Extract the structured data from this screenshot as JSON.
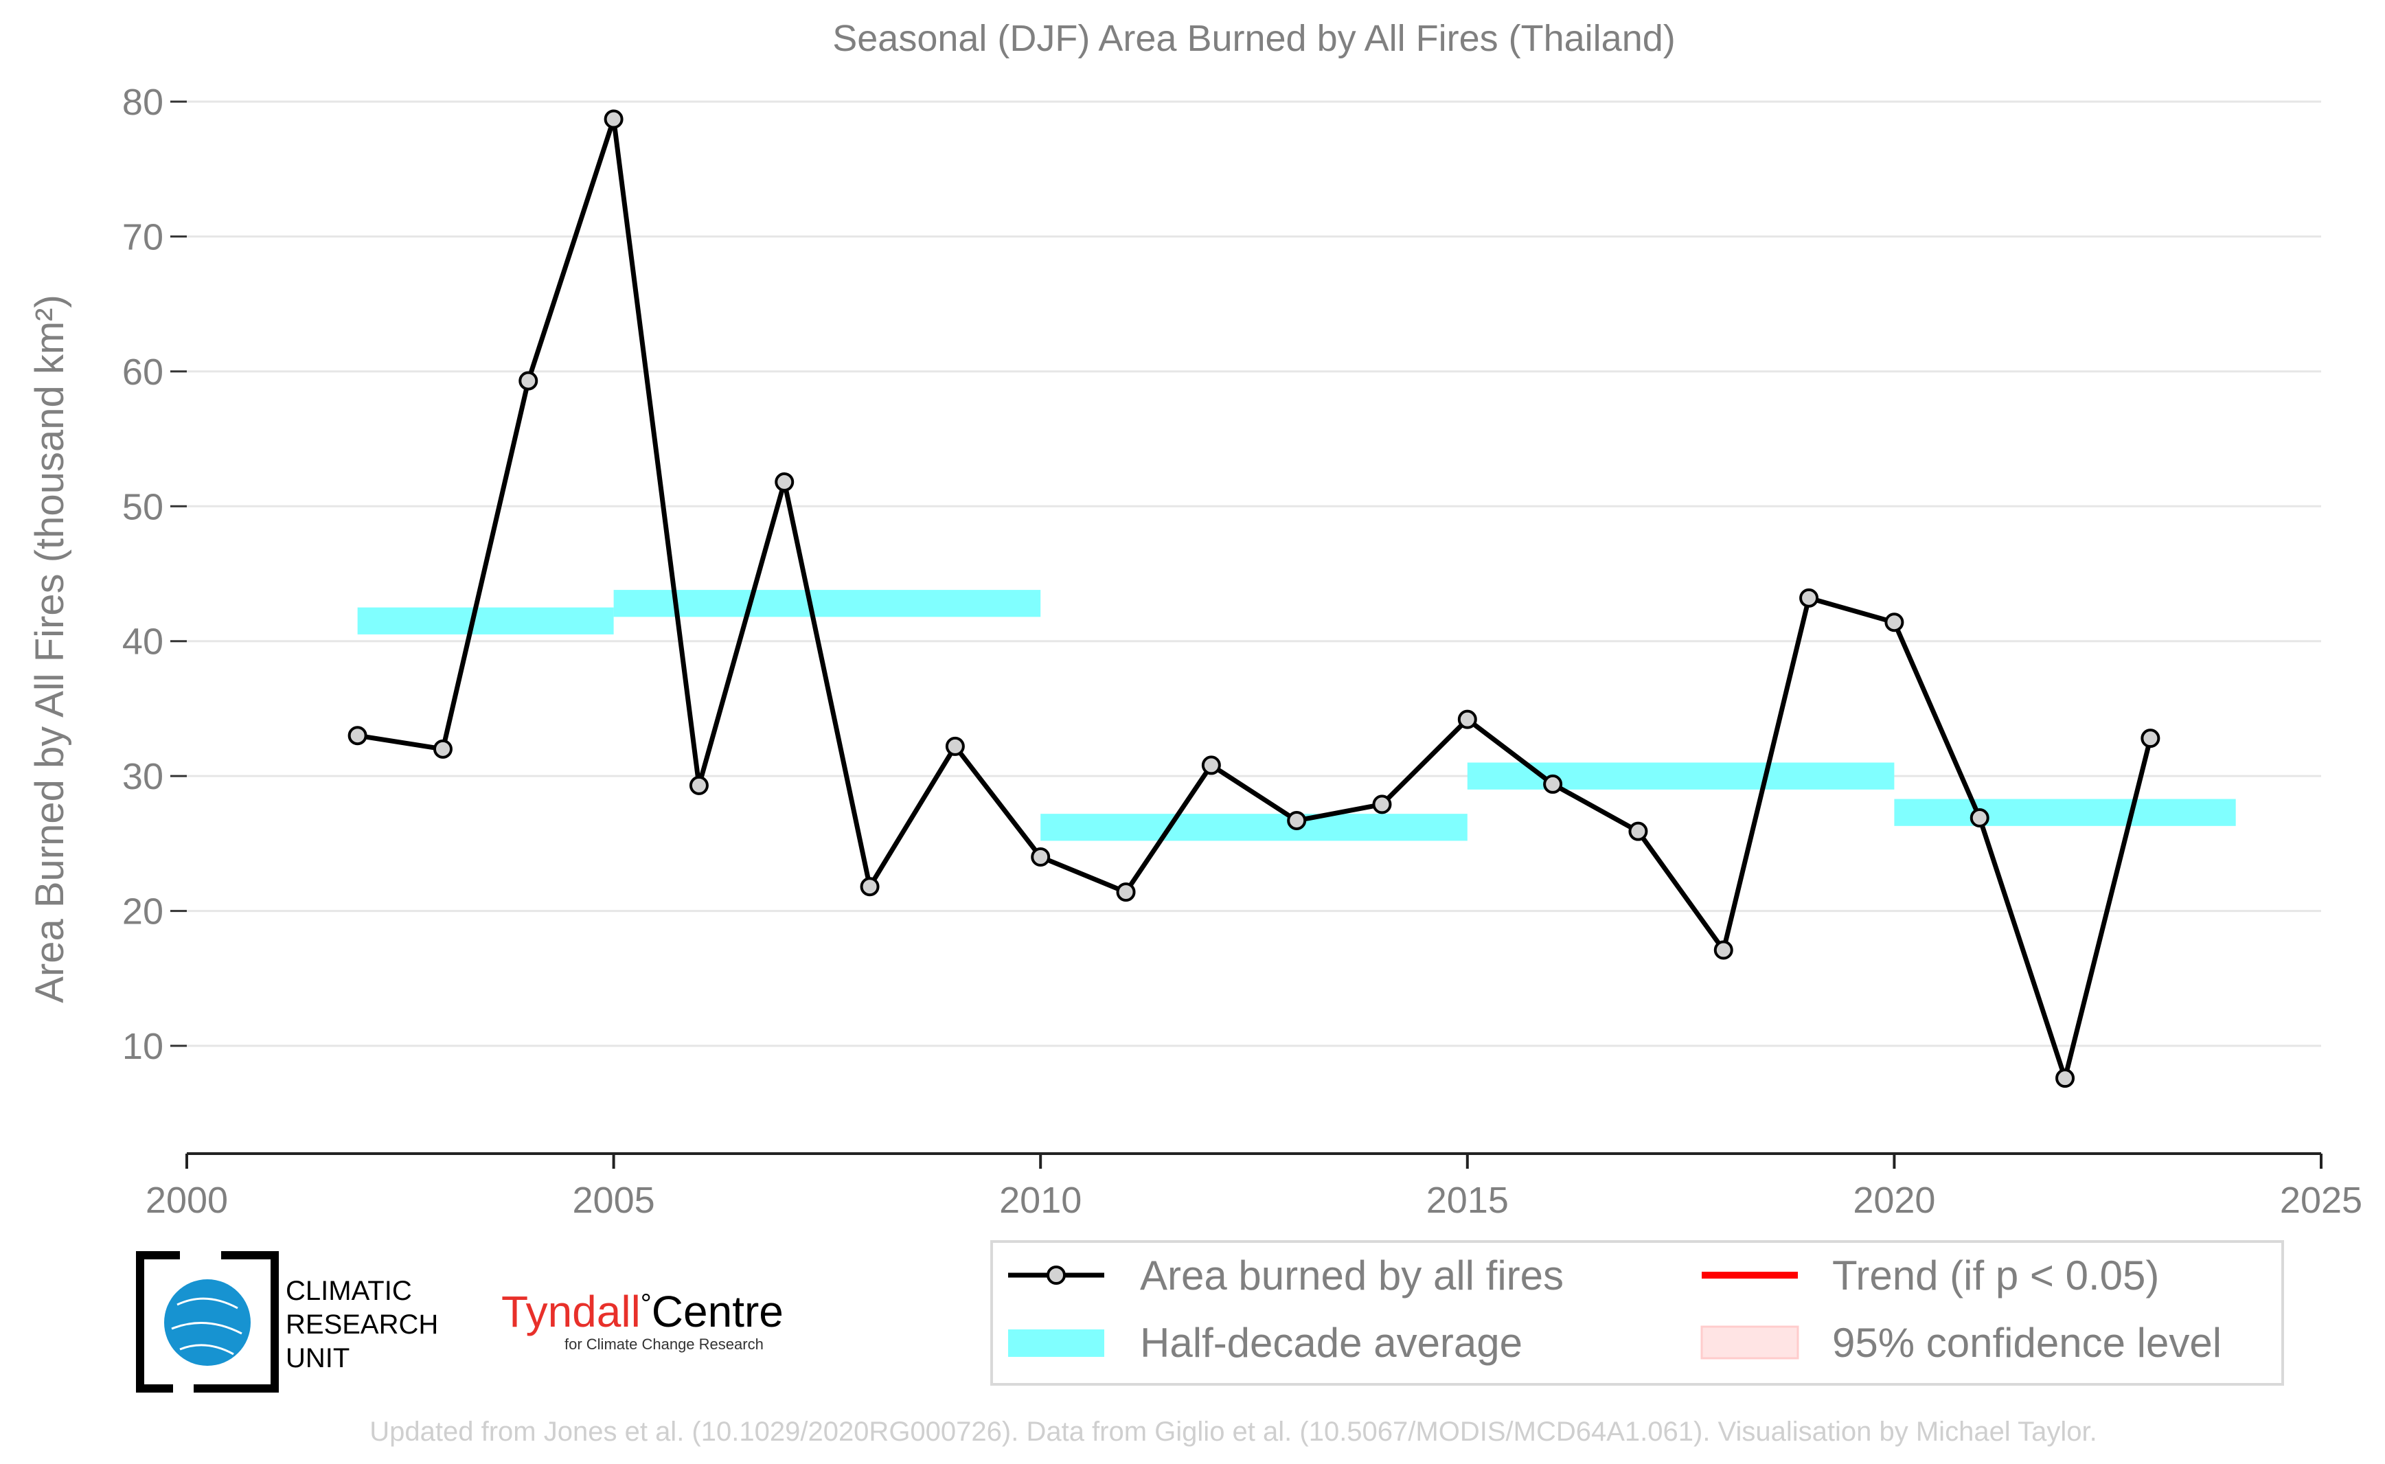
{
  "chart_data": {
    "type": "line",
    "title": "Seasonal (DJF) Area Burned by All Fires (Thailand)",
    "xlabel": "",
    "ylabel": "Area Burned by All Fires (thousand km²)",
    "xlim": [
      2000,
      2025
    ],
    "ylim": [
      2,
      80
    ],
    "x_ticks": [
      2000,
      2005,
      2010,
      2015,
      2020,
      2025
    ],
    "y_ticks": [
      10,
      20,
      30,
      40,
      50,
      60,
      70,
      80
    ],
    "grid": "horizontal",
    "legend_position": "bottom-right",
    "series": [
      {
        "name": "Area burned by all fires",
        "color": "#000000",
        "marker_fill": "#d3d3d3",
        "x": [
          2002,
          2003,
          2004,
          2005,
          2006,
          2007,
          2008,
          2009,
          2010,
          2011,
          2012,
          2013,
          2014,
          2015,
          2016,
          2017,
          2018,
          2019,
          2020,
          2021,
          2022,
          2023
        ],
        "y": [
          33.0,
          32.0,
          59.3,
          78.7,
          29.3,
          51.8,
          21.8,
          32.2,
          24.0,
          21.4,
          30.8,
          26.7,
          27.9,
          34.2,
          29.4,
          25.9,
          17.1,
          43.2,
          41.4,
          26.9,
          7.6,
          32.8
        ]
      }
    ],
    "half_decade_average": {
      "name": "Half-decade average",
      "color": "#80ffff",
      "segments": [
        {
          "x0": 2002,
          "x1": 2005,
          "y": 41.5
        },
        {
          "x0": 2005,
          "x1": 2010,
          "y": 42.8
        },
        {
          "x0": 2010,
          "x1": 2015,
          "y": 26.2
        },
        {
          "x0": 2015,
          "x1": 2020,
          "y": 30.0
        },
        {
          "x0": 2020,
          "x1": 2024,
          "y": 27.3
        }
      ]
    },
    "trend": {
      "name": "Trend (if p < 0.05)",
      "color": "#ff0000"
    },
    "confidence": {
      "name": "95% confidence level",
      "color": "#ffe4e4"
    }
  },
  "logos": {
    "cru_lines": [
      "CLIMATIC",
      "RESEARCH",
      "UNIT"
    ],
    "tyndall_main": "Tyndall",
    "tyndall_degree": "°",
    "tyndall_centre": "Centre",
    "tyndall_sub": "for Climate Change Research"
  },
  "footer": "Updated from Jones et al. (10.1029/2020RG000726). Data from Giglio et al. (10.5067/MODIS/MCD64A1.061). Visualisation by Michael Taylor."
}
